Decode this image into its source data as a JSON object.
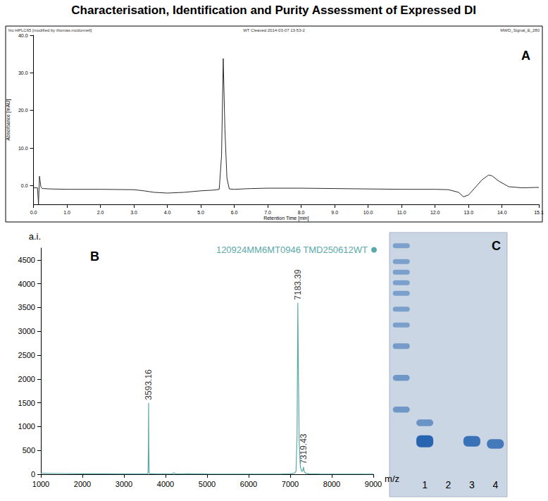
{
  "title": "Characterisation, Identification and Purity Assessment of Expressed DI",
  "chart_data": [
    {
      "type": "line",
      "panel": "A",
      "header": [
        "hic-HPLC65 [modified by thomas.mcdonnell]",
        "WT Cleaved 2014-03-07 13-53-2",
        "MWD_Signal_E_280"
      ],
      "xlabel": "Retention Time [min]",
      "ylabel": "Absorbance [mAU]",
      "x": [
        0,
        0.12,
        0.15,
        0.18,
        0.22,
        0.26,
        0.3,
        0.5,
        1,
        2,
        3,
        3.3,
        3.6,
        4,
        4.5,
        5,
        5.4,
        5.55,
        5.62,
        5.67,
        5.72,
        5.78,
        5.85,
        6,
        6.5,
        7,
        8,
        9,
        10,
        11,
        12,
        12.4,
        12.7,
        12.85,
        13,
        13.2,
        13.4,
        13.6,
        13.7,
        13.9,
        14.2,
        14.6,
        15,
        15.1
      ],
      "values": [
        -0.6,
        -0.6,
        -5,
        2.5,
        -0.3,
        -0.8,
        -0.8,
        -0.9,
        -1.0,
        -1.0,
        -1.1,
        -1.4,
        -1.8,
        -2.0,
        -1.8,
        -1.4,
        -1.2,
        -1.0,
        8,
        33.8,
        15,
        2,
        -0.9,
        -1.0,
        -0.8,
        -0.7,
        -0.7,
        -0.8,
        -0.9,
        -1.0,
        -1.0,
        -1.1,
        -1.8,
        -3.0,
        -2.5,
        -0.5,
        1.5,
        2.8,
        2.6,
        1.2,
        -0.3,
        -0.6,
        -0.5,
        -0.5
      ],
      "color": "#2b2b2b",
      "xlim": [
        0,
        15.1
      ],
      "xticks": [
        {
          "value": 0,
          "label": "0.0"
        },
        {
          "value": 1,
          "label": "1.0"
        },
        {
          "value": 2,
          "label": "2.0"
        },
        {
          "value": 3,
          "label": "3.0"
        },
        {
          "value": 4,
          "label": "4.0"
        },
        {
          "value": 5,
          "label": "5.0"
        },
        {
          "value": 6,
          "label": "6.0"
        },
        {
          "value": 7,
          "label": "7.0"
        },
        {
          "value": 8,
          "label": "8.0"
        },
        {
          "value": 9,
          "label": "9.0"
        },
        {
          "value": 10,
          "label": "10.0"
        },
        {
          "value": 11,
          "label": "11.0"
        },
        {
          "value": 12,
          "label": "12.0"
        },
        {
          "value": 13,
          "label": "13.0"
        },
        {
          "value": 14,
          "label": "14.0"
        },
        {
          "value": 15.1,
          "label": "15.1"
        }
      ],
      "ylim": [
        -5,
        40
      ],
      "yticks": [
        {
          "value": 0,
          "label": "0.0"
        },
        {
          "value": 10,
          "label": "10.0"
        },
        {
          "value": 20,
          "label": "20.0"
        },
        {
          "value": 30,
          "label": "30.0"
        },
        {
          "value": 40,
          "label": "40.0"
        }
      ],
      "grid": false
    },
    {
      "type": "line",
      "panel": "B",
      "xlabel": "m/z",
      "ylabel": "a.i.",
      "x": [
        1000,
        1500,
        2000,
        2500,
        3000,
        3400,
        3560,
        3580,
        3588,
        3593.16,
        3598,
        3606,
        3630,
        3800,
        4150,
        4200,
        4250,
        4500,
        5000,
        6000,
        6800,
        7000,
        7100,
        7140,
        7165,
        7183.39,
        7195,
        7215,
        7245,
        7280,
        7305,
        7319.43,
        7335,
        7370,
        7450,
        7700,
        8000,
        9000
      ],
      "series": [
        {
          "name": "120924MM6MT0946 TMD250612WT",
          "color": "#5aa9a9",
          "values": [
            20,
            15,
            10,
            8,
            6,
            5,
            5,
            30,
            600,
            1500,
            500,
            20,
            8,
            5,
            5,
            30,
            5,
            10,
            5,
            4,
            5,
            10,
            20,
            60,
            800,
            3600,
            2400,
            700,
            150,
            60,
            80,
            150,
            60,
            20,
            8,
            5,
            4,
            3
          ]
        }
      ],
      "annotations": [
        {
          "x": 3593.16,
          "y": 1500,
          "text": "3593.16"
        },
        {
          "x": 7183.39,
          "y": 3600,
          "text": "7183.39"
        },
        {
          "x": 7319.43,
          "y": 150,
          "text": "7319.43"
        }
      ],
      "xlim": [
        1000,
        9000
      ],
      "xticks": [
        1000,
        2000,
        3000,
        4000,
        5000,
        6000,
        7000,
        8000,
        9000
      ],
      "ylim": [
        0,
        4750
      ],
      "yticks": [
        0,
        500,
        1000,
        1500,
        2000,
        2500,
        3000,
        3500,
        4000,
        4500
      ],
      "legend": "upper right",
      "grid": false
    },
    {
      "type": "gel",
      "panel": "C",
      "categories": [
        null,
        "1",
        "2",
        "3",
        "4"
      ],
      "ylim": [
        0,
        100
      ],
      "tick_labels": "x",
      "color": "#1f5fae",
      "bands": [
        {
          "lane": 0,
          "position": 5,
          "intensity": 0.3
        },
        {
          "lane": 0,
          "position": 11,
          "intensity": 0.3
        },
        {
          "lane": 0,
          "position": 15,
          "intensity": 0.3
        },
        {
          "lane": 0,
          "position": 19,
          "intensity": 0.3
        },
        {
          "lane": 0,
          "position": 23,
          "intensity": 0.3
        },
        {
          "lane": 0,
          "position": 29,
          "intensity": 0.3
        },
        {
          "lane": 0,
          "position": 35,
          "intensity": 0.3
        },
        {
          "lane": 0,
          "position": 43,
          "intensity": 0.35
        },
        {
          "lane": 0,
          "position": 55,
          "intensity": 0.4
        },
        {
          "lane": 0,
          "position": 67,
          "intensity": 0.4
        },
        {
          "lane": 1,
          "position": 72,
          "intensity": 0.45
        },
        {
          "lane": 1,
          "position": 79,
          "intensity": 1.0
        },
        {
          "lane": 3,
          "position": 79,
          "intensity": 0.85
        },
        {
          "lane": 4,
          "position": 80,
          "intensity": 0.75
        }
      ]
    }
  ]
}
